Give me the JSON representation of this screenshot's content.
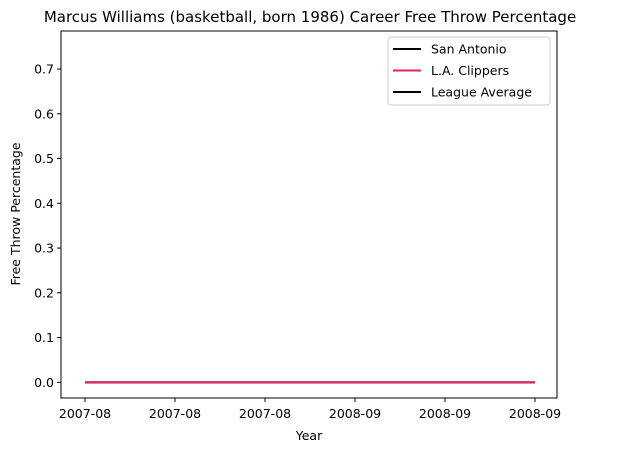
{
  "chart_data": {
    "type": "line",
    "title": "Marcus Williams (basketball, born 1986) Career Free Throw Percentage",
    "xlabel": "Year",
    "ylabel": "Free Throw Percentage",
    "x_tick_labels": [
      "2007-08",
      "2007-08",
      "2007-08",
      "2008-09",
      "2008-09",
      "2008-09"
    ],
    "y_ticks": [
      0.0,
      0.1,
      0.2,
      0.3,
      0.4,
      0.5,
      0.6,
      0.7
    ],
    "y_tick_labels": [
      "0.0",
      "0.1",
      "0.2",
      "0.3",
      "0.4",
      "0.5",
      "0.6",
      "0.7"
    ],
    "ylim": [
      -0.035,
      0.785
    ],
    "x": [
      "2007-08",
      "2008-09"
    ],
    "series": [
      {
        "name": "San Antonio",
        "color": "#000000",
        "values": [
          0.0,
          0.0
        ]
      },
      {
        "name": "L.A. Clippers",
        "color": "#e8235a",
        "values": [
          0.0,
          0.0
        ]
      },
      {
        "name": "League Average",
        "color": "#000000",
        "values": [
          0.0,
          0.0
        ]
      }
    ],
    "legend_position": "top-right",
    "grid": false
  }
}
